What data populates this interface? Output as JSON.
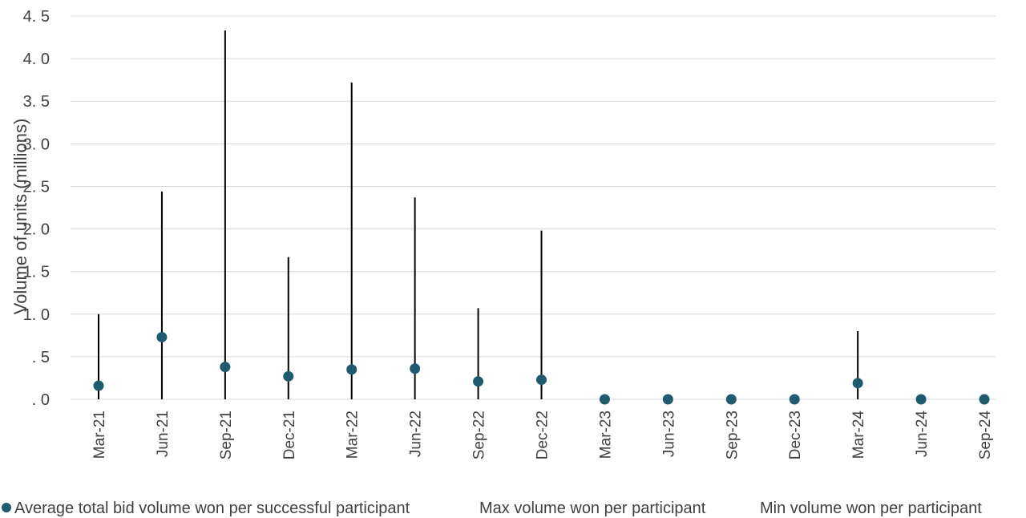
{
  "chart_data": {
    "type": "scatter",
    "title": "",
    "xlabel": "",
    "ylabel": "Volume of units (millions)",
    "ylim": [
      0,
      4.5
    ],
    "y_ticks": [
      ". 0",
      ". 5",
      "1. 0",
      "1. 5",
      "2. 0",
      "2. 5",
      "3. 0",
      "3. 5",
      "4. 0",
      "4. 5"
    ],
    "grid": true,
    "legend_position": "bottom",
    "categories": [
      "Mar-21",
      "Jun-21",
      "Sep-21",
      "Dec-21",
      "Mar-22",
      "Jun-22",
      "Sep-22",
      "Dec-22",
      "Mar-23",
      "Jun-23",
      "Sep-23",
      "Dec-23",
      "Mar-24",
      "Jun-24",
      "Sep-24"
    ],
    "series": [
      {
        "name": "Average total bid volume won per successful participant",
        "color": "#1f5a6e",
        "marker": "circle",
        "values": [
          0.16,
          0.73,
          0.38,
          0.27,
          0.35,
          0.36,
          0.21,
          0.23,
          0.0,
          0.0,
          0.0,
          0.0,
          0.19,
          0.0,
          0.0
        ]
      },
      {
        "name": "Max volume won per participant",
        "color": "#000000",
        "marker": "none",
        "values": [
          1.0,
          2.44,
          4.33,
          1.67,
          3.72,
          2.37,
          1.07,
          1.98,
          0.0,
          0.0,
          0.0,
          0.0,
          0.8,
          0.0,
          0.0
        ]
      },
      {
        "name": "Min volume won per participant",
        "color": "#000000",
        "marker": "none",
        "values": [
          0.0,
          0.0,
          0.0,
          0.0,
          0.0,
          0.0,
          0.0,
          0.0,
          0.0,
          0.0,
          0.0,
          0.0,
          0.0,
          0.0,
          0.0
        ]
      }
    ]
  }
}
